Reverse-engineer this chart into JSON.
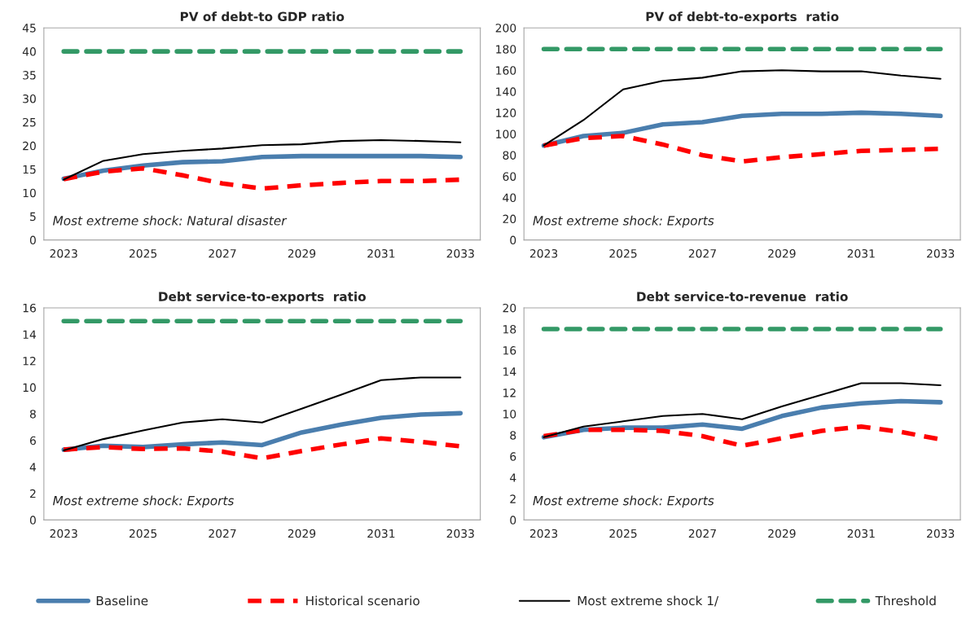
{
  "chart_data": [
    {
      "type": "line",
      "title": "PV of debt-to GDP ratio",
      "categories": [
        "2023",
        null,
        "2025",
        null,
        "2027",
        null,
        "2029",
        null,
        "2031",
        null,
        "2033"
      ],
      "ylim": [
        0,
        45
      ],
      "yticks": [
        0,
        5,
        10,
        15,
        20,
        25,
        30,
        35,
        40,
        45
      ],
      "grid": false,
      "legend": "bottom",
      "annotations": [
        "Most extreme shock: Natural disaster"
      ],
      "series": [
        {
          "name": "Baseline",
          "color": "#4a7eae",
          "line_style": "solid",
          "values": [
            13,
            14.7,
            15.8,
            16.5,
            16.7,
            17.6,
            17.8,
            17.8,
            17.8,
            17.8,
            17.6
          ]
        },
        {
          "name": "Historical scenario",
          "color": "#ff0000",
          "line_style": "dashed",
          "values": [
            12.9,
            14.5,
            15.2,
            13.7,
            12.0,
            10.9,
            11.6,
            12.1,
            12.5,
            12.5,
            12.8
          ]
        },
        {
          "name": "Most extreme shock 1/",
          "color": "#000000",
          "line_style": "solid",
          "values": [
            12.8,
            16.8,
            18.2,
            18.9,
            19.4,
            20.1,
            20.3,
            21.0,
            21.2,
            21.0,
            20.7
          ]
        },
        {
          "name": "Threshold",
          "color": "#339966",
          "line_style": "dashed",
          "values": [
            40,
            40,
            40,
            40,
            40,
            40,
            40,
            40,
            40,
            40,
            40
          ]
        }
      ]
    },
    {
      "type": "line",
      "title": "PV of debt-to-exports  ratio",
      "categories": [
        "2023",
        null,
        "2025",
        null,
        "2027",
        null,
        "2029",
        null,
        "2031",
        null,
        "2033"
      ],
      "ylim": [
        0,
        200
      ],
      "yticks": [
        0,
        20,
        40,
        60,
        80,
        100,
        120,
        140,
        160,
        180,
        200
      ],
      "grid": false,
      "annotations": [
        "Most extreme shock: Exports"
      ],
      "series": [
        {
          "color": "#4a7eae",
          "line_style": "solid",
          "values": [
            89,
            98,
            101,
            109,
            111,
            117,
            119,
            119,
            120,
            119,
            117
          ]
        },
        {
          "color": "#ff0000",
          "line_style": "dashed",
          "values": [
            89,
            96,
            98,
            90,
            80,
            74,
            78,
            81,
            84,
            85,
            86
          ]
        },
        {
          "color": "#000000",
          "line_style": "solid",
          "values": [
            89,
            113,
            142,
            150,
            153,
            159,
            160,
            159,
            159,
            155,
            152
          ]
        },
        {
          "color": "#339966",
          "line_style": "dashed",
          "values": [
            180,
            180,
            180,
            180,
            180,
            180,
            180,
            180,
            180,
            180,
            180
          ]
        }
      ]
    },
    {
      "type": "line",
      "title": "Debt service-to-exports  ratio",
      "categories": [
        "2023",
        null,
        "2025",
        null,
        "2027",
        null,
        "2029",
        null,
        "2031",
        null,
        "2033"
      ],
      "ylim": [
        0,
        16
      ],
      "yticks": [
        0,
        2,
        4,
        6,
        8,
        10,
        12,
        14,
        16
      ],
      "grid": false,
      "annotations": [
        "Most extreme shock: Exports"
      ],
      "series": [
        {
          "color": "#4a7eae",
          "line_style": "solid",
          "values": [
            5.3,
            5.6,
            5.5,
            5.7,
            5.85,
            5.65,
            6.6,
            7.2,
            7.7,
            7.95,
            8.05
          ]
        },
        {
          "color": "#ff0000",
          "line_style": "dashed",
          "values": [
            5.3,
            5.5,
            5.35,
            5.4,
            5.15,
            4.65,
            5.2,
            5.7,
            6.15,
            5.9,
            5.55
          ]
        },
        {
          "color": "#000000",
          "line_style": "solid",
          "values": [
            5.25,
            6.1,
            6.75,
            7.35,
            7.6,
            7.35,
            8.4,
            9.45,
            10.55,
            10.75,
            10.75
          ]
        },
        {
          "color": "#339966",
          "line_style": "dashed",
          "values": [
            15,
            15,
            15,
            15,
            15,
            15,
            15,
            15,
            15,
            15,
            15
          ]
        }
      ]
    },
    {
      "type": "line",
      "title": "Debt service-to-revenue  ratio",
      "categories": [
        "2023",
        null,
        "2025",
        null,
        "2027",
        null,
        "2029",
        null,
        "2031",
        null,
        "2033"
      ],
      "ylim": [
        0,
        20
      ],
      "yticks": [
        0,
        2,
        4,
        6,
        8,
        10,
        12,
        14,
        16,
        18,
        20
      ],
      "grid": false,
      "annotations": [
        "Most extreme shock: Exports"
      ],
      "series": [
        {
          "color": "#4a7eae",
          "line_style": "solid",
          "values": [
            7.8,
            8.5,
            8.7,
            8.7,
            9.0,
            8.6,
            9.8,
            10.6,
            11.0,
            11.2,
            11.1
          ]
        },
        {
          "color": "#ff0000",
          "line_style": "dashed",
          "values": [
            7.9,
            8.5,
            8.5,
            8.4,
            7.9,
            7.0,
            7.7,
            8.4,
            8.8,
            8.3,
            7.6
          ]
        },
        {
          "color": "#000000",
          "line_style": "solid",
          "values": [
            7.8,
            8.8,
            9.3,
            9.8,
            10.0,
            9.5,
            10.7,
            11.8,
            12.9,
            12.9,
            12.7
          ]
        },
        {
          "color": "#339966",
          "line_style": "dashed",
          "values": [
            18,
            18,
            18,
            18,
            18,
            18,
            18,
            18,
            18,
            18,
            18
          ]
        }
      ]
    }
  ]
}
